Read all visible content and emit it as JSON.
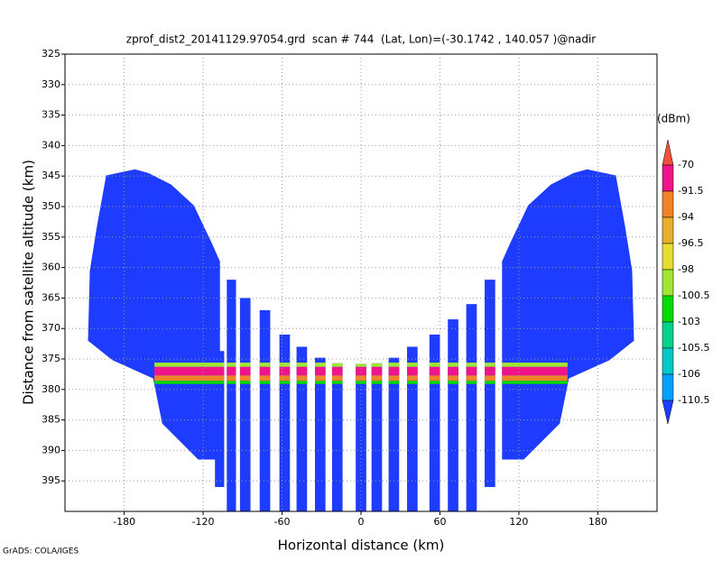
{
  "chart_data": {
    "type": "profile",
    "title": "zprof_dist2_20141129.97054.grd  scan # 744  (Lat, Lon)=(-30.1742 , 140.057 )@nadir",
    "x_label": "Horizontal distance (km)",
    "y_label": "Distance from satellite altitude (km)",
    "footer": "GrADS: COLA/IGES",
    "xlim": [
      -225,
      225
    ],
    "xticks": [
      -180,
      -120,
      -60,
      0,
      60,
      120,
      180
    ],
    "ylim": [
      325,
      400
    ],
    "yticks": [
      325,
      330,
      335,
      340,
      345,
      350,
      355,
      360,
      365,
      370,
      375,
      380,
      385,
      390,
      395
    ],
    "grid": true,
    "colorbar": {
      "unit": "(dBm)",
      "levels": [
        -70,
        -91.5,
        -94,
        -96.5,
        -98,
        -100.5,
        -103,
        -105.5,
        -106,
        -110.5
      ],
      "colors": [
        "#f0503c",
        "#f0148c",
        "#f08228",
        "#e6af2d",
        "#e6dc32",
        "#a0e632",
        "#00dc00",
        "#00d28c",
        "#00c8c8",
        "#00a0ff",
        "#1e3cff"
      ]
    },
    "wings": [
      {
        "x": [
          -193.7,
          -171.8,
          -161.5,
          -144.3,
          -127.1,
          -113.4,
          -107.2,
          -107.2,
          -123.7,
          -151.1,
          -158.0,
          -188.9,
          -207.5,
          -206.1,
          -200.6
        ],
        "y": [
          344.9,
          343.9,
          344.5,
          346.4,
          349.8,
          356.0,
          359.0,
          391.5,
          391.5,
          385.6,
          378.2,
          375.2,
          372.0,
          360.5,
          353.1
        ],
        "value": -112
      },
      {
        "x": [
          193.7,
          171.8,
          161.5,
          144.3,
          127.1,
          113.4,
          107.2,
          107.2,
          123.7,
          151.1,
          158.0,
          188.9,
          207.5,
          206.1,
          200.6
        ],
        "y": [
          344.9,
          343.9,
          344.5,
          346.4,
          349.8,
          356.0,
          359.0,
          391.5,
          391.5,
          385.6,
          378.2,
          375.2,
          372.0,
          360.5,
          353.1
        ],
        "value": -112
      }
    ],
    "stripes": [
      {
        "x": [
          -111,
          -104
        ],
        "top": 373.7,
        "bottom": 396,
        "value": -112
      },
      {
        "x": [
          -102,
          -95
        ],
        "top": 362,
        "bottom": 400,
        "value": -112
      },
      {
        "x": [
          -92,
          -84
        ],
        "top": 365,
        "bottom": 400,
        "value": -112
      },
      {
        "x": [
          -77,
          -69
        ],
        "top": 367,
        "bottom": 400,
        "value": -112
      },
      {
        "x": [
          -62,
          -54
        ],
        "top": 371,
        "bottom": 400,
        "value": -112
      },
      {
        "x": [
          -49,
          -41
        ],
        "top": 373,
        "bottom": 400,
        "value": -112
      },
      {
        "x": [
          -35,
          -27
        ],
        "top": 374.8,
        "bottom": 400,
        "value": -112
      },
      {
        "x": [
          -22,
          -14
        ],
        "top": 375.7,
        "bottom": 400,
        "value": -112
      },
      {
        "x": [
          -4,
          4
        ],
        "top": 375.8,
        "bottom": 400,
        "value": -112
      },
      {
        "x": [
          8,
          16
        ],
        "top": 375.7,
        "bottom": 400,
        "value": -112
      },
      {
        "x": [
          21,
          29
        ],
        "top": 374.8,
        "bottom": 400,
        "value": -112
      },
      {
        "x": [
          35,
          43
        ],
        "top": 373,
        "bottom": 400,
        "value": -112
      },
      {
        "x": [
          52,
          60
        ],
        "top": 371,
        "bottom": 400,
        "value": -112
      },
      {
        "x": [
          66,
          74
        ],
        "top": 368.5,
        "bottom": 400,
        "value": -112
      },
      {
        "x": [
          80,
          88
        ],
        "top": 366,
        "bottom": 400,
        "value": -112
      },
      {
        "x": [
          94,
          102
        ],
        "top": 362,
        "bottom": 396,
        "value": -112
      }
    ],
    "bands": [
      {
        "x": [
          -157,
          157
        ],
        "top": 375.6,
        "bottom": 376.3,
        "value": -99
      },
      {
        "x": [
          -157,
          157
        ],
        "top": 376.3,
        "bottom": 377.7,
        "value": -85
      },
      {
        "x": [
          -157,
          157
        ],
        "top": 377.7,
        "bottom": 378.6,
        "value": -93
      },
      {
        "x": [
          -157,
          157
        ],
        "top": 378.6,
        "bottom": 379.1,
        "value": -101
      }
    ]
  }
}
